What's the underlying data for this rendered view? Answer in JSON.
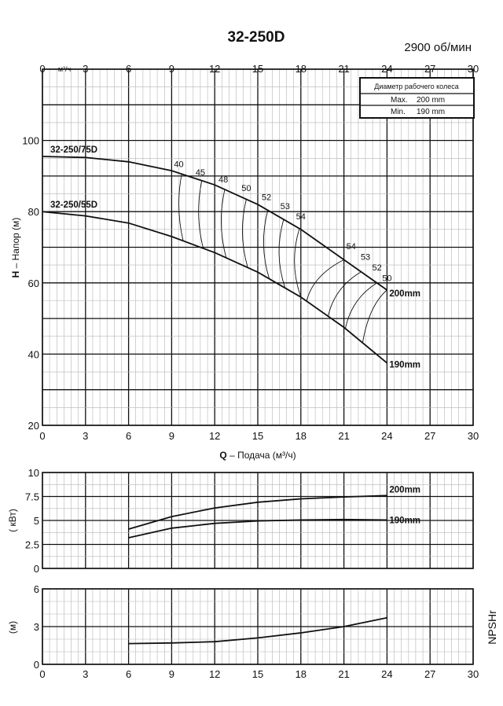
{
  "chart_data": {
    "type": "line",
    "title": "32-250D",
    "speed_label": "2900 об/мин",
    "x_unit_label": "м³/ч",
    "x_ticks": [
      "0",
      "3",
      "6",
      "9",
      "12",
      "15",
      "18",
      "21",
      "24",
      "27",
      "30"
    ],
    "x_range": [
      0,
      30
    ],
    "grid": true,
    "xlabel_bold": "Q",
    "xlabel_rest": " – Подача (м³/ч)",
    "impeller_box": {
      "heading": "Диаметр рабочего колеса",
      "max_label": "Max.",
      "max_value": "200 mm",
      "min_label": "Min.",
      "min_value": "190 mm"
    },
    "panels": [
      {
        "id": "head",
        "ylabel_bold": "H",
        "ylabel_rest": " – Напор (м)",
        "y_range": [
          20,
          120
        ],
        "y_ticks": [
          "20",
          "40",
          "60",
          "80",
          "100"
        ],
        "series": [
          {
            "name": "200mm",
            "model_label": "32-250/75D",
            "x": [
              0,
              3,
              6,
              9,
              12,
              15,
              18,
              21,
              24
            ],
            "y": [
              95.5,
              95.2,
              94,
              91.5,
              87.5,
              82,
              75,
              66.5,
              58
            ]
          },
          {
            "name": "190mm",
            "model_label": "32-250/55D",
            "x": [
              0,
              3,
              6,
              9,
              12,
              15,
              18,
              21,
              24
            ],
            "y": [
              80,
              78.8,
              76.8,
              73,
              68.5,
              63,
              56,
              47.5,
              37.5
            ]
          }
        ],
        "efficiency_labels": [
          {
            "label": "40",
            "x": 9.5,
            "y": 92.5
          },
          {
            "label": "45",
            "x": 11.0,
            "y": 90.2
          },
          {
            "label": "48",
            "x": 12.6,
            "y": 88.2
          },
          {
            "label": "50",
            "x": 14.2,
            "y": 85.8
          },
          {
            "label": "52",
            "x": 15.6,
            "y": 83.2
          },
          {
            "label": "53",
            "x": 16.9,
            "y": 80.7
          },
          {
            "label": "54",
            "x": 18.0,
            "y": 77.8
          },
          {
            "label": "54",
            "x": 21.5,
            "y": 69.5
          },
          {
            "label": "53",
            "x": 22.5,
            "y": 66.5
          },
          {
            "label": "52",
            "x": 23.3,
            "y": 63.5
          },
          {
            "label": "50",
            "x": 24.0,
            "y": 60.5
          }
        ]
      },
      {
        "id": "power",
        "ylabel": "( кВт)",
        "y_range": [
          0,
          10
        ],
        "y_ticks": [
          "0",
          "2.5",
          "5",
          "7.5",
          "10"
        ],
        "series": [
          {
            "name": "200mm",
            "x": [
              6,
              9,
              12,
              15,
              18,
              21,
              24
            ],
            "y": [
              4.1,
              5.4,
              6.3,
              6.9,
              7.25,
              7.45,
              7.6
            ]
          },
          {
            "name": "190mm",
            "x": [
              6,
              9,
              12,
              15,
              18,
              21,
              24
            ],
            "y": [
              3.2,
              4.2,
              4.7,
              4.95,
              5.05,
              5.1,
              5.05
            ]
          }
        ]
      },
      {
        "id": "npsh",
        "ylabel": "(м)",
        "side_label": "NPSHr",
        "y_range": [
          0,
          6
        ],
        "y_ticks": [
          "0",
          "3",
          "6"
        ],
        "series": [
          {
            "x": [
              6,
              9,
              12,
              15,
              18,
              21,
              24
            ],
            "y": [
              1.65,
              1.7,
              1.8,
              2.1,
              2.5,
              3.0,
              3.7
            ]
          }
        ]
      }
    ]
  }
}
